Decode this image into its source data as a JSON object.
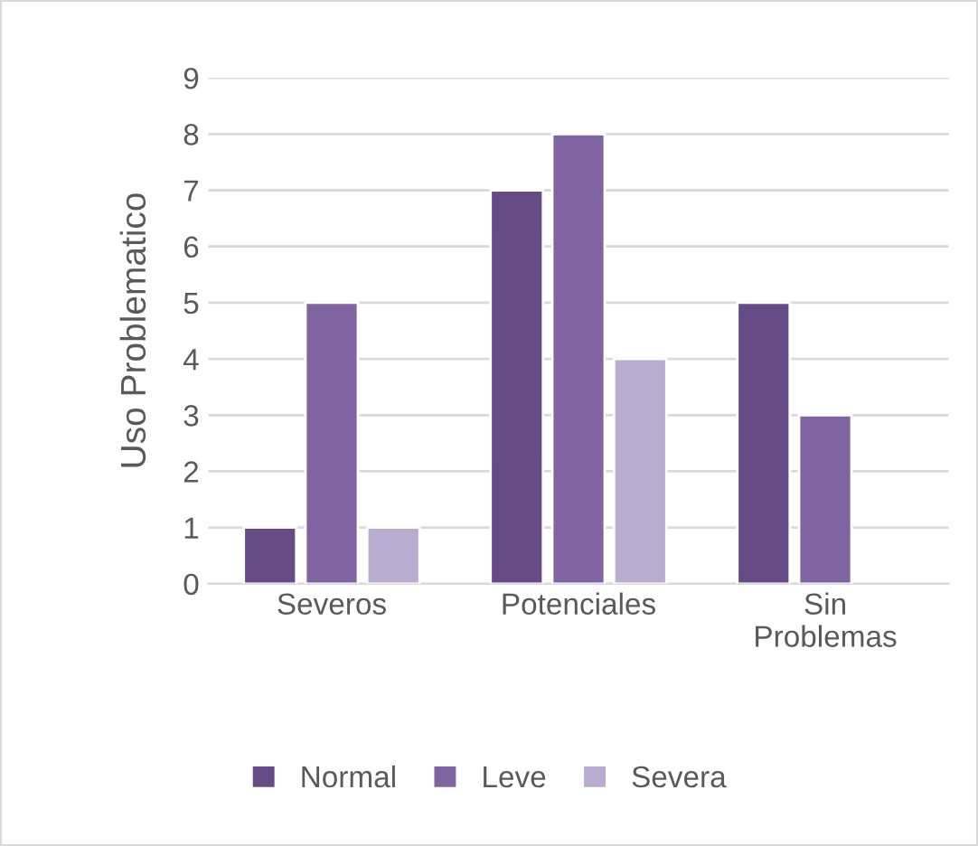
{
  "chart_data": {
    "type": "bar",
    "ylabel": "Uso Problematico",
    "categories": [
      "Severos",
      "Potenciales",
      "Sin Problemas"
    ],
    "series": [
      {
        "name": "Normal",
        "color": "#664b87",
        "values": [
          1,
          7,
          5
        ]
      },
      {
        "name": "Leve",
        "color": "#8064a2",
        "values": [
          5,
          8,
          3
        ]
      },
      {
        "name": "Severa",
        "color": "#b9acd0",
        "values": [
          1,
          4,
          null
        ]
      }
    ],
    "ylim": [
      0,
      9
    ],
    "yticks": [
      0,
      1,
      2,
      3,
      4,
      5,
      6,
      7,
      8,
      9
    ],
    "grid": "y",
    "legend": "bottom"
  }
}
